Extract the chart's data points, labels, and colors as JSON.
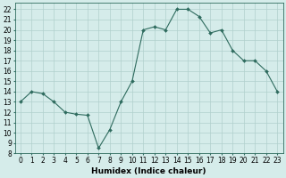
{
  "x": [
    0,
    1,
    2,
    3,
    4,
    5,
    6,
    7,
    8,
    9,
    10,
    11,
    12,
    13,
    14,
    15,
    16,
    17,
    18,
    19,
    20,
    21,
    22,
    23
  ],
  "y": [
    13,
    14,
    13.8,
    13,
    12,
    11.8,
    11.7,
    8.5,
    10.3,
    13,
    15,
    20,
    20.3,
    20,
    22,
    22,
    21.3,
    19.7,
    20,
    18,
    17,
    17,
    16,
    14
  ],
  "line_color": "#2e6b5e",
  "marker": "D",
  "marker_size": 2,
  "bg_color": "#d5ecea",
  "grid_color": "#b0d0cc",
  "xlabel": "Humidex (Indice chaleur)",
  "xlim": [
    -0.5,
    23.5
  ],
  "ylim": [
    8,
    22.6
  ],
  "yticks": [
    8,
    9,
    10,
    11,
    12,
    13,
    14,
    15,
    16,
    17,
    18,
    19,
    20,
    21,
    22
  ],
  "xticks": [
    0,
    1,
    2,
    3,
    4,
    5,
    6,
    7,
    8,
    9,
    10,
    11,
    12,
    13,
    14,
    15,
    16,
    17,
    18,
    19,
    20,
    21,
    22,
    23
  ],
  "tick_fontsize": 5.5,
  "xlabel_fontsize": 6.5,
  "axis_color": "#2e6b5e",
  "linewidth": 0.8
}
